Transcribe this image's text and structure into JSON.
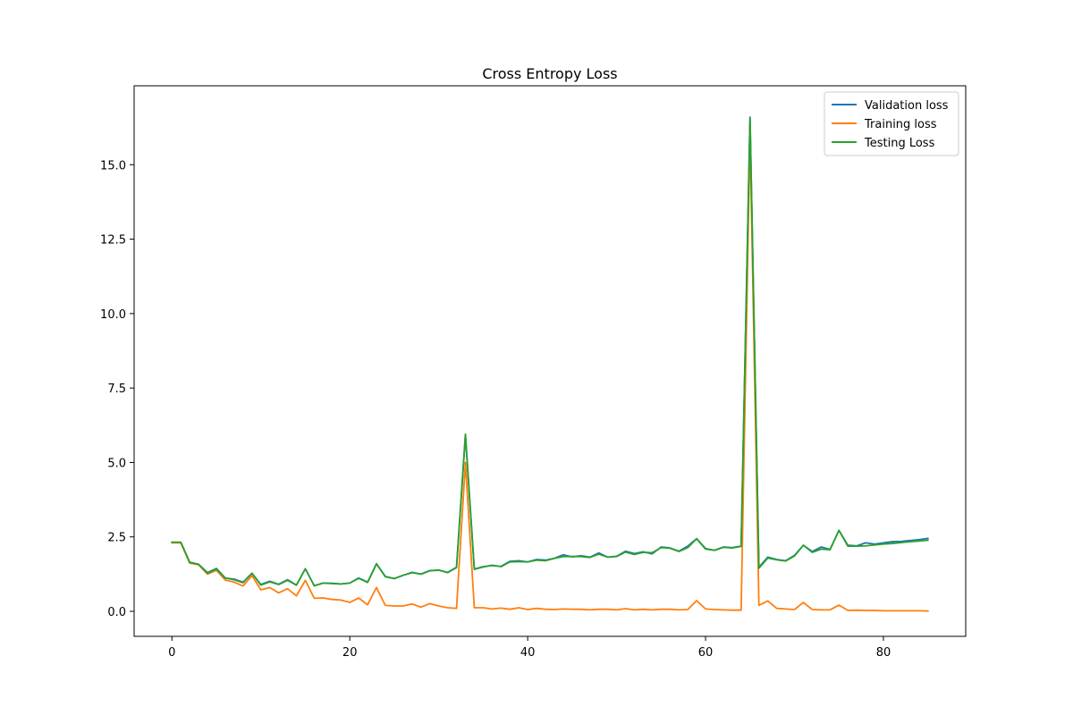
{
  "chart_data": {
    "type": "line",
    "title": "Cross Entropy Loss",
    "xlabel": "",
    "ylabel": "",
    "xlim": [
      -4.25,
      89.25
    ],
    "ylim": [
      -0.84,
      17.65
    ],
    "xticks": [
      0,
      20,
      40,
      60,
      80
    ],
    "xtick_labels": [
      "0",
      "20",
      "40",
      "60",
      "80"
    ],
    "yticks": [
      0.0,
      2.5,
      5.0,
      7.5,
      10.0,
      12.5,
      15.0
    ],
    "ytick_labels": [
      "0.0",
      "2.5",
      "5.0",
      "7.5",
      "10.0",
      "12.5",
      "15.0"
    ],
    "grid": false,
    "legend_position": "top-right",
    "x": [
      0,
      1,
      2,
      3,
      4,
      5,
      6,
      7,
      8,
      9,
      10,
      11,
      12,
      13,
      14,
      15,
      16,
      17,
      18,
      19,
      20,
      21,
      22,
      23,
      24,
      25,
      26,
      27,
      28,
      29,
      30,
      31,
      32,
      33,
      34,
      35,
      36,
      37,
      38,
      39,
      40,
      41,
      42,
      43,
      44,
      45,
      46,
      47,
      48,
      49,
      50,
      51,
      52,
      53,
      54,
      55,
      56,
      57,
      58,
      59,
      60,
      61,
      62,
      63,
      64,
      65,
      66,
      67,
      68,
      69,
      70,
      71,
      72,
      73,
      74,
      75,
      76,
      77,
      78,
      79,
      80,
      81,
      82,
      83,
      84,
      85
    ],
    "series": [
      {
        "name": "Validation loss",
        "color": "#1f77b4",
        "values": [
          2.32,
          2.32,
          1.65,
          1.58,
          1.3,
          1.44,
          1.12,
          1.08,
          0.98,
          1.28,
          0.9,
          1.01,
          0.91,
          1.06,
          0.88,
          1.43,
          0.86,
          0.95,
          0.94,
          0.92,
          0.95,
          1.12,
          0.98,
          1.6,
          1.17,
          1.1,
          1.21,
          1.31,
          1.25,
          1.37,
          1.38,
          1.31,
          1.48,
          5.92,
          1.42,
          1.5,
          1.54,
          1.51,
          1.68,
          1.7,
          1.66,
          1.74,
          1.72,
          1.78,
          1.9,
          1.83,
          1.87,
          1.82,
          1.96,
          1.82,
          1.85,
          2.02,
          1.94,
          2.0,
          1.93,
          2.16,
          2.13,
          2.02,
          2.19,
          2.44,
          2.11,
          2.05,
          2.16,
          2.14,
          2.19,
          16.6,
          1.48,
          1.82,
          1.74,
          1.7,
          1.88,
          2.22,
          2.01,
          2.16,
          2.08,
          2.72,
          2.22,
          2.2,
          2.3,
          2.26,
          2.3,
          2.34,
          2.35,
          2.38,
          2.41,
          2.45
        ]
      },
      {
        "name": "Training loss",
        "color": "#ff7f0e",
        "values": [
          2.3,
          2.3,
          1.62,
          1.56,
          1.25,
          1.38,
          1.05,
          0.98,
          0.85,
          1.2,
          0.72,
          0.8,
          0.62,
          0.76,
          0.52,
          1.04,
          0.44,
          0.45,
          0.4,
          0.38,
          0.3,
          0.45,
          0.22,
          0.8,
          0.2,
          0.18,
          0.18,
          0.25,
          0.14,
          0.26,
          0.18,
          0.12,
          0.1,
          5.0,
          0.12,
          0.12,
          0.08,
          0.11,
          0.07,
          0.12,
          0.06,
          0.1,
          0.07,
          0.06,
          0.08,
          0.07,
          0.07,
          0.05,
          0.07,
          0.07,
          0.05,
          0.09,
          0.05,
          0.07,
          0.05,
          0.07,
          0.07,
          0.05,
          0.06,
          0.36,
          0.08,
          0.06,
          0.05,
          0.04,
          0.04,
          16.0,
          0.2,
          0.35,
          0.1,
          0.08,
          0.06,
          0.3,
          0.06,
          0.05,
          0.05,
          0.21,
          0.03,
          0.04,
          0.03,
          0.03,
          0.02,
          0.02,
          0.02,
          0.02,
          0.02,
          0.01
        ]
      },
      {
        "name": "Testing Loss",
        "color": "#2ca02c",
        "values": [
          2.32,
          2.32,
          1.64,
          1.58,
          1.28,
          1.42,
          1.12,
          1.06,
          0.96,
          1.28,
          0.88,
          0.99,
          0.9,
          1.04,
          0.88,
          1.43,
          0.86,
          0.95,
          0.93,
          0.92,
          0.95,
          1.11,
          0.97,
          1.59,
          1.16,
          1.1,
          1.21,
          1.3,
          1.25,
          1.36,
          1.39,
          1.3,
          1.47,
          5.95,
          1.41,
          1.49,
          1.55,
          1.5,
          1.66,
          1.67,
          1.66,
          1.72,
          1.7,
          1.78,
          1.84,
          1.84,
          1.84,
          1.81,
          1.92,
          1.82,
          1.84,
          1.99,
          1.91,
          1.98,
          1.97,
          2.14,
          2.12,
          2.01,
          2.14,
          2.44,
          2.09,
          2.05,
          2.15,
          2.13,
          2.18,
          16.55,
          1.45,
          1.79,
          1.73,
          1.69,
          1.86,
          2.22,
          1.98,
          2.09,
          2.07,
          2.72,
          2.19,
          2.19,
          2.2,
          2.23,
          2.26,
          2.28,
          2.31,
          2.34,
          2.36,
          2.39
        ]
      }
    ]
  }
}
